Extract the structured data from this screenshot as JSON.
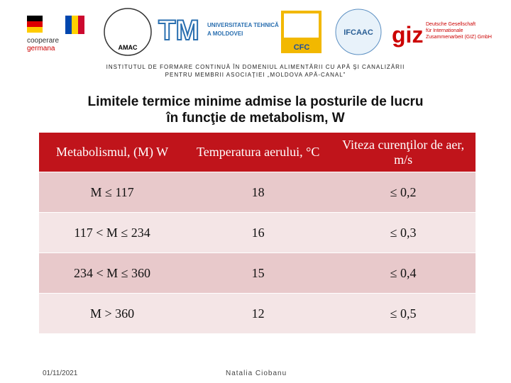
{
  "logos": {
    "coop": [
      "cooperare",
      "germana"
    ],
    "amac": "AMAC",
    "utm": {
      "mark": "TM",
      "name": [
        "UNIVERSITATEA TEHNICĂ",
        "A MOLDOVEI"
      ]
    },
    "cfc": "CFC",
    "ifcaac": "IFCAAC",
    "giz": {
      "mark": "giz",
      "name": [
        "Deutsche Gesellschaft",
        "für Internationale",
        "Zusammenarbeit (GIZ) GmbH"
      ]
    }
  },
  "header": {
    "lines": [
      "INSTITUTUL DE FORMARE CONTINUĂ ÎN DOMENIUL ALIMENTĂRII CU APĂ ŞI CANALIZĂRII",
      "PENTRU MEMBRII ASOCIAŢIEI „MOLDOVA APĂ-CANAL”"
    ]
  },
  "title": [
    "Limitele termice minime admise la posturile de lucru",
    "în funcţie de metabolism, W"
  ],
  "table": {
    "columns": [
      "Metabolismul, (M) W",
      "Temperatura aerului, °C",
      "Viteza curenţilor de aer, m/s"
    ],
    "rows": [
      [
        "M ≤ 117",
        "18",
        "≤ 0,2"
      ],
      [
        "117 < M ≤ 234",
        "16",
        "≤ 0,3"
      ],
      [
        "234 < M ≤ 360",
        "15",
        "≤ 0,4"
      ],
      [
        "M > 360",
        "12",
        "≤ 0,5"
      ]
    ]
  },
  "footer": {
    "date": "01/11/2021",
    "author": "Natalia Ciobanu"
  }
}
